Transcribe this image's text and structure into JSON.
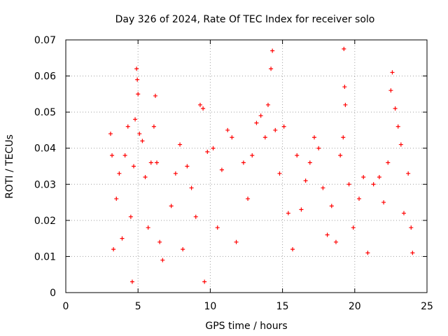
{
  "chart_data": {
    "type": "scatter",
    "title": "Day 326 of 2024, Rate Of TEC Index for receiver solo",
    "xlabel": "GPS time / hours",
    "ylabel": "ROTI / TECUs",
    "xlim": [
      0,
      25
    ],
    "ylim": [
      0,
      0.07
    ],
    "x_ticks": [
      0,
      5,
      10,
      15,
      20,
      25
    ],
    "x_tick_labels": [
      "0",
      "5",
      "10",
      "15",
      "20",
      "25"
    ],
    "y_ticks": [
      0,
      0.01,
      0.02,
      0.03,
      0.04,
      0.05,
      0.06,
      0.07
    ],
    "y_tick_labels": [
      "0",
      "0.01",
      "0.02",
      "0.03",
      "0.04",
      "0.05",
      "0.06",
      "0.07"
    ],
    "grid": true,
    "marker": "plus",
    "color": "#ff0000",
    "series": [
      {
        "points": [
          [
            3.1,
            0.044
          ],
          [
            3.2,
            0.038
          ],
          [
            3.3,
            0.012
          ],
          [
            3.5,
            0.026
          ],
          [
            3.7,
            0.033
          ],
          [
            3.9,
            0.015
          ],
          [
            4.1,
            0.038
          ],
          [
            4.3,
            0.046
          ],
          [
            4.5,
            0.021
          ],
          [
            4.6,
            0.003
          ],
          [
            4.7,
            0.035
          ],
          [
            4.8,
            0.048
          ],
          [
            4.9,
            0.062
          ],
          [
            4.95,
            0.059
          ],
          [
            5.0,
            0.055
          ],
          [
            5.1,
            0.044
          ],
          [
            5.3,
            0.042
          ],
          [
            5.5,
            0.032
          ],
          [
            5.7,
            0.018
          ],
          [
            5.9,
            0.036
          ],
          [
            6.1,
            0.046
          ],
          [
            6.2,
            0.0545
          ],
          [
            6.3,
            0.036
          ],
          [
            6.5,
            0.014
          ],
          [
            6.7,
            0.009
          ],
          [
            7.3,
            0.024
          ],
          [
            7.6,
            0.033
          ],
          [
            7.9,
            0.041
          ],
          [
            8.1,
            0.012
          ],
          [
            8.4,
            0.035
          ],
          [
            8.7,
            0.029
          ],
          [
            9.0,
            0.021
          ],
          [
            9.3,
            0.052
          ],
          [
            9.5,
            0.051
          ],
          [
            9.6,
            0.003
          ],
          [
            9.8,
            0.039
          ],
          [
            10.2,
            0.04
          ],
          [
            10.5,
            0.018
          ],
          [
            10.8,
            0.034
          ],
          [
            11.2,
            0.045
          ],
          [
            11.5,
            0.043
          ],
          [
            11.8,
            0.014
          ],
          [
            12.3,
            0.036
          ],
          [
            12.6,
            0.026
          ],
          [
            12.9,
            0.038
          ],
          [
            13.2,
            0.047
          ],
          [
            13.5,
            0.049
          ],
          [
            13.8,
            0.043
          ],
          [
            14.0,
            0.052
          ],
          [
            14.2,
            0.062
          ],
          [
            14.3,
            0.067
          ],
          [
            14.5,
            0.045
          ],
          [
            14.8,
            0.033
          ],
          [
            15.1,
            0.046
          ],
          [
            15.4,
            0.022
          ],
          [
            15.7,
            0.012
          ],
          [
            16.0,
            0.038
          ],
          [
            16.3,
            0.023
          ],
          [
            16.6,
            0.031
          ],
          [
            16.9,
            0.036
          ],
          [
            17.2,
            0.043
          ],
          [
            17.5,
            0.04
          ],
          [
            17.8,
            0.029
          ],
          [
            18.1,
            0.016
          ],
          [
            18.4,
            0.024
          ],
          [
            18.7,
            0.014
          ],
          [
            19.0,
            0.038
          ],
          [
            19.2,
            0.043
          ],
          [
            19.25,
            0.0675
          ],
          [
            19.3,
            0.057
          ],
          [
            19.35,
            0.052
          ],
          [
            19.6,
            0.03
          ],
          [
            19.9,
            0.018
          ],
          [
            20.3,
            0.026
          ],
          [
            20.6,
            0.032
          ],
          [
            20.9,
            0.011
          ],
          [
            21.3,
            0.03
          ],
          [
            21.7,
            0.032
          ],
          [
            22.0,
            0.025
          ],
          [
            22.3,
            0.036
          ],
          [
            22.5,
            0.056
          ],
          [
            22.6,
            0.061
          ],
          [
            22.8,
            0.051
          ],
          [
            23.0,
            0.046
          ],
          [
            23.2,
            0.041
          ],
          [
            23.4,
            0.022
          ],
          [
            23.7,
            0.033
          ],
          [
            23.9,
            0.018
          ],
          [
            24.0,
            0.011
          ]
        ]
      }
    ]
  }
}
